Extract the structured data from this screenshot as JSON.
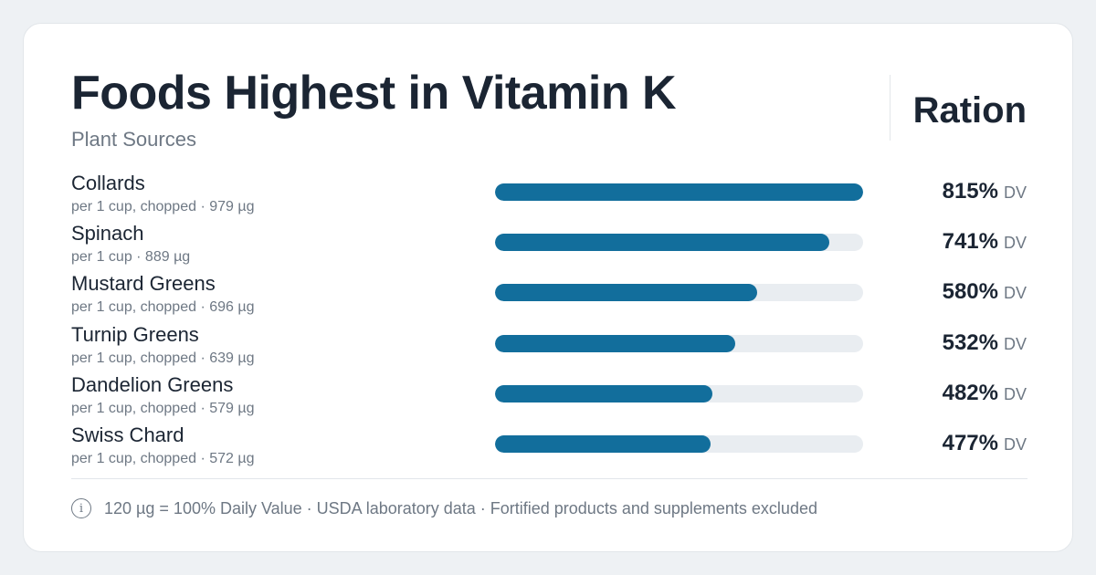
{
  "header": {
    "title": "Foods Highest in Vitamin K",
    "subtitle": "Plant Sources",
    "brand": "Ration"
  },
  "colors": {
    "bar_fill": "#126e9c",
    "bar_track": "#e9edf1",
    "text_primary": "#1b2533",
    "text_muted": "#6e7884"
  },
  "chart_data": {
    "type": "bar",
    "orientation": "horizontal",
    "title": "Foods Highest in Vitamin K",
    "subtitle": "Plant Sources",
    "value_unit": "DV",
    "xlim": [
      0,
      815
    ],
    "grid": false,
    "categories": [
      "Collards",
      "Spinach",
      "Mustard Greens",
      "Turnip Greens",
      "Dandelion Greens",
      "Swiss Chard"
    ],
    "values": [
      815,
      741,
      580,
      532,
      482,
      477
    ],
    "rows": [
      {
        "name": "Collards",
        "detail": "per 1 cup, chopped · 979 µg",
        "value": 815,
        "label": "815%",
        "unit": "DV"
      },
      {
        "name": "Spinach",
        "detail": "per 1 cup · 889 µg",
        "value": 741,
        "label": "741%",
        "unit": "DV"
      },
      {
        "name": "Mustard Greens",
        "detail": "per 1 cup, chopped · 696 µg",
        "value": 580,
        "label": "580%",
        "unit": "DV"
      },
      {
        "name": "Turnip Greens",
        "detail": "per 1 cup, chopped · 639 µg",
        "value": 532,
        "label": "532%",
        "unit": "DV"
      },
      {
        "name": "Dandelion Greens",
        "detail": "per 1 cup, chopped · 579 µg",
        "value": 482,
        "label": "482%",
        "unit": "DV"
      },
      {
        "name": "Swiss Chard",
        "detail": "per 1 cup, chopped · 572 µg",
        "value": 477,
        "label": "477%",
        "unit": "DV"
      }
    ]
  },
  "footer": {
    "icon": "info-icon",
    "icon_glyph": "i",
    "note": "120 µg = 100% Daily Value · USDA laboratory data · Fortified products and supplements excluded"
  }
}
